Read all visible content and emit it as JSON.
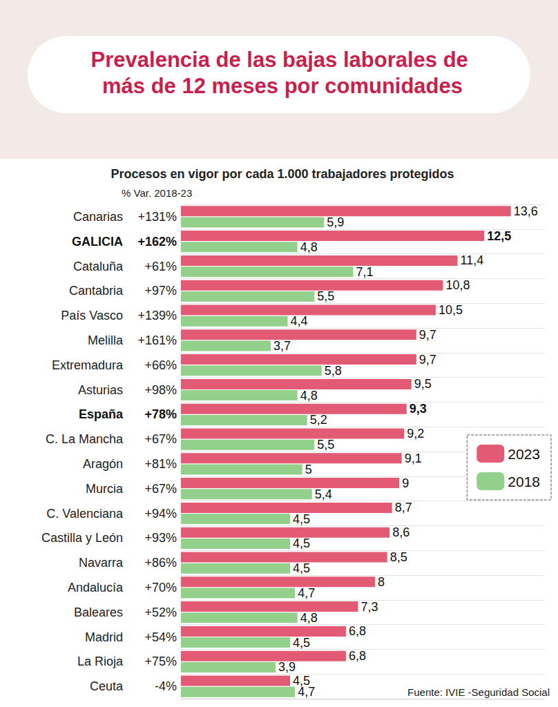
{
  "chart_data": {
    "type": "bar",
    "orientation": "horizontal",
    "title": "Prevalencia de las bajas laborales de más de 12 meses por comunidades",
    "subtitle": "Procesos en vigor por cada 1.000 trabajadores protegidos",
    "variation_title": "% Var. 2018-23",
    "source": "Fuente: IVIE -Seguridad Social",
    "categories": [
      "Canarias",
      "GALICIA",
      "Cataluña",
      "Cantabria",
      "País Vasco",
      "Melilla",
      "Extremadura",
      "Asturias",
      "España",
      "C. La Mancha",
      "Aragón",
      "Murcia",
      "C. Valenciana",
      "Castilla y León",
      "Navarra",
      "Andalucía",
      "Baleares",
      "Madrid",
      "La Rioja",
      "Ceuta"
    ],
    "variation": [
      "+131%",
      "+162%",
      "+61%",
      "+97%",
      "+139%",
      "+161%",
      "+66%",
      "+98%",
      "+78%",
      "+67%",
      "+81%",
      "+67%",
      "+94%",
      "+93%",
      "+86%",
      "+70%",
      "+52%",
      "+54%",
      "+75%",
      "-4%"
    ],
    "series": [
      {
        "name": "2023",
        "color": "#e35a74",
        "values": [
          13.6,
          12.5,
          11.4,
          10.8,
          10.5,
          9.7,
          9.7,
          9.5,
          9.3,
          9.2,
          9.1,
          9,
          8.7,
          8.6,
          8.5,
          8,
          7.3,
          6.8,
          6.8,
          4.5
        ],
        "value_labels": [
          "13,6",
          "12,5",
          "11,4",
          "10,8",
          "10,5",
          "9,7",
          "9,7",
          "9,5",
          "9,3",
          "9,2",
          "9,1",
          "9",
          "8,7",
          "8,6",
          "8,5",
          "8",
          "7,3",
          "6,8",
          "6,8",
          "4,5"
        ]
      },
      {
        "name": "2018",
        "color": "#93d08c",
        "values": [
          5.9,
          4.8,
          7.1,
          5.5,
          4.4,
          3.7,
          5.8,
          4.8,
          5.2,
          5.5,
          5,
          5.4,
          4.5,
          4.5,
          4.5,
          4.7,
          4.8,
          4.5,
          3.9,
          4.7
        ],
        "value_labels": [
          "5,9",
          "4,8",
          "7,1",
          "5,5",
          "4,4",
          "3,7",
          "5,8",
          "4,8",
          "5,2",
          "5,5",
          "5",
          "5,4",
          "4,5",
          "4,5",
          "4,5",
          "4,7",
          "4,8",
          "4,5",
          "3,9",
          "4,7"
        ]
      }
    ],
    "xlim": [
      0,
      15
    ],
    "tick_labels": false,
    "grid": false,
    "data_labels": true,
    "legend": "right"
  }
}
